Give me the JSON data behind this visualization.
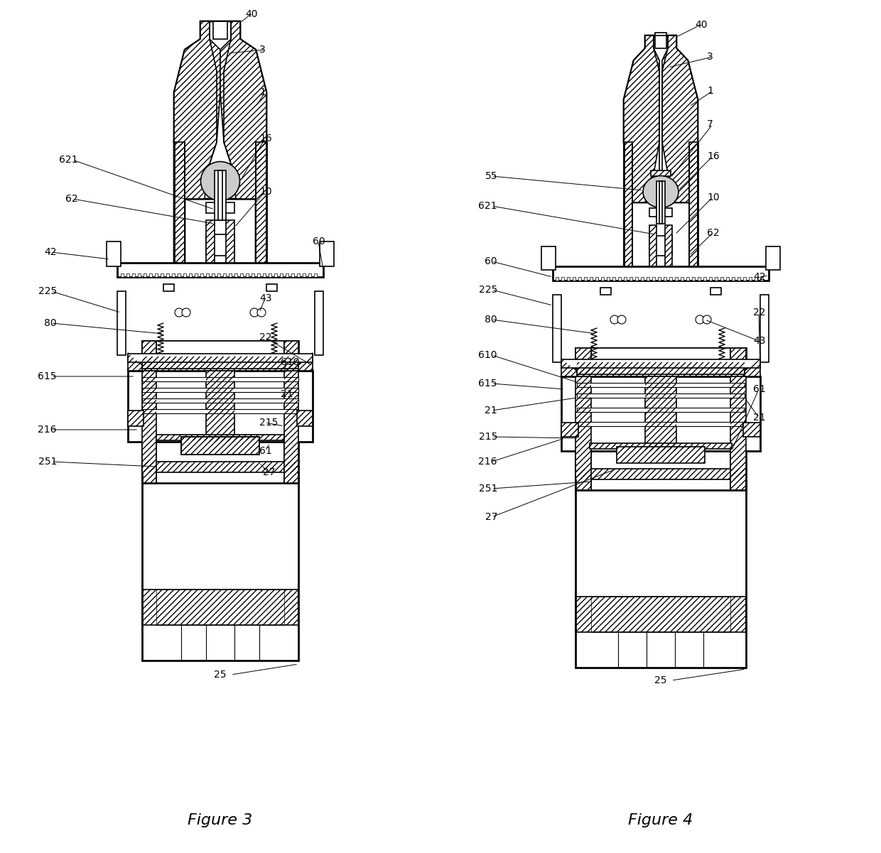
{
  "background_color": "#ffffff",
  "fig3_title": "Figure 3",
  "fig4_title": "Figure 4",
  "line_color": "#000000"
}
